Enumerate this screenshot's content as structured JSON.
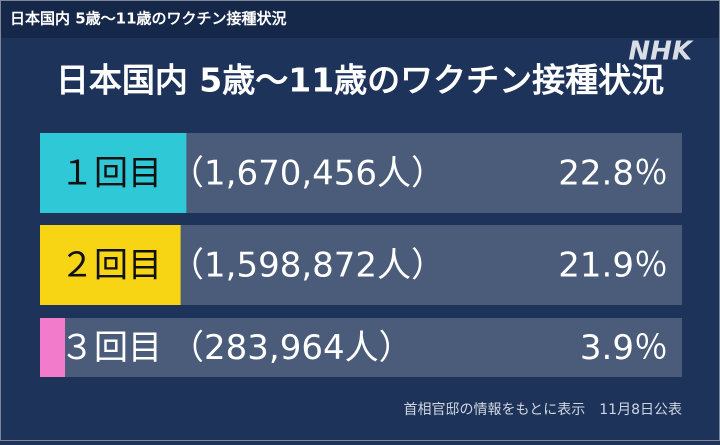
{
  "header": "日本国内 5歳～11歳のワクチン接種状況",
  "logo": "NHK",
  "chart_data": {
    "type": "bar",
    "orientation": "horizontal",
    "title": "日本国内 5歳～11歳のワクチン接種状況",
    "categories": [
      "１回目",
      "２回目",
      "３回目"
    ],
    "count_labels": [
      "（1,670,456人）",
      "（1,598,872人）",
      "（283,964人）"
    ],
    "values": [
      22.8,
      21.9,
      3.9
    ],
    "value_labels": [
      "22.8％",
      "21.9％",
      "3.9％"
    ],
    "colors": [
      "#2fc8d6",
      "#f7d515",
      "#f27ccb"
    ],
    "xlim": [
      0,
      100
    ],
    "note": "首相官邸の情報をもとに表示　11月8日公表"
  }
}
